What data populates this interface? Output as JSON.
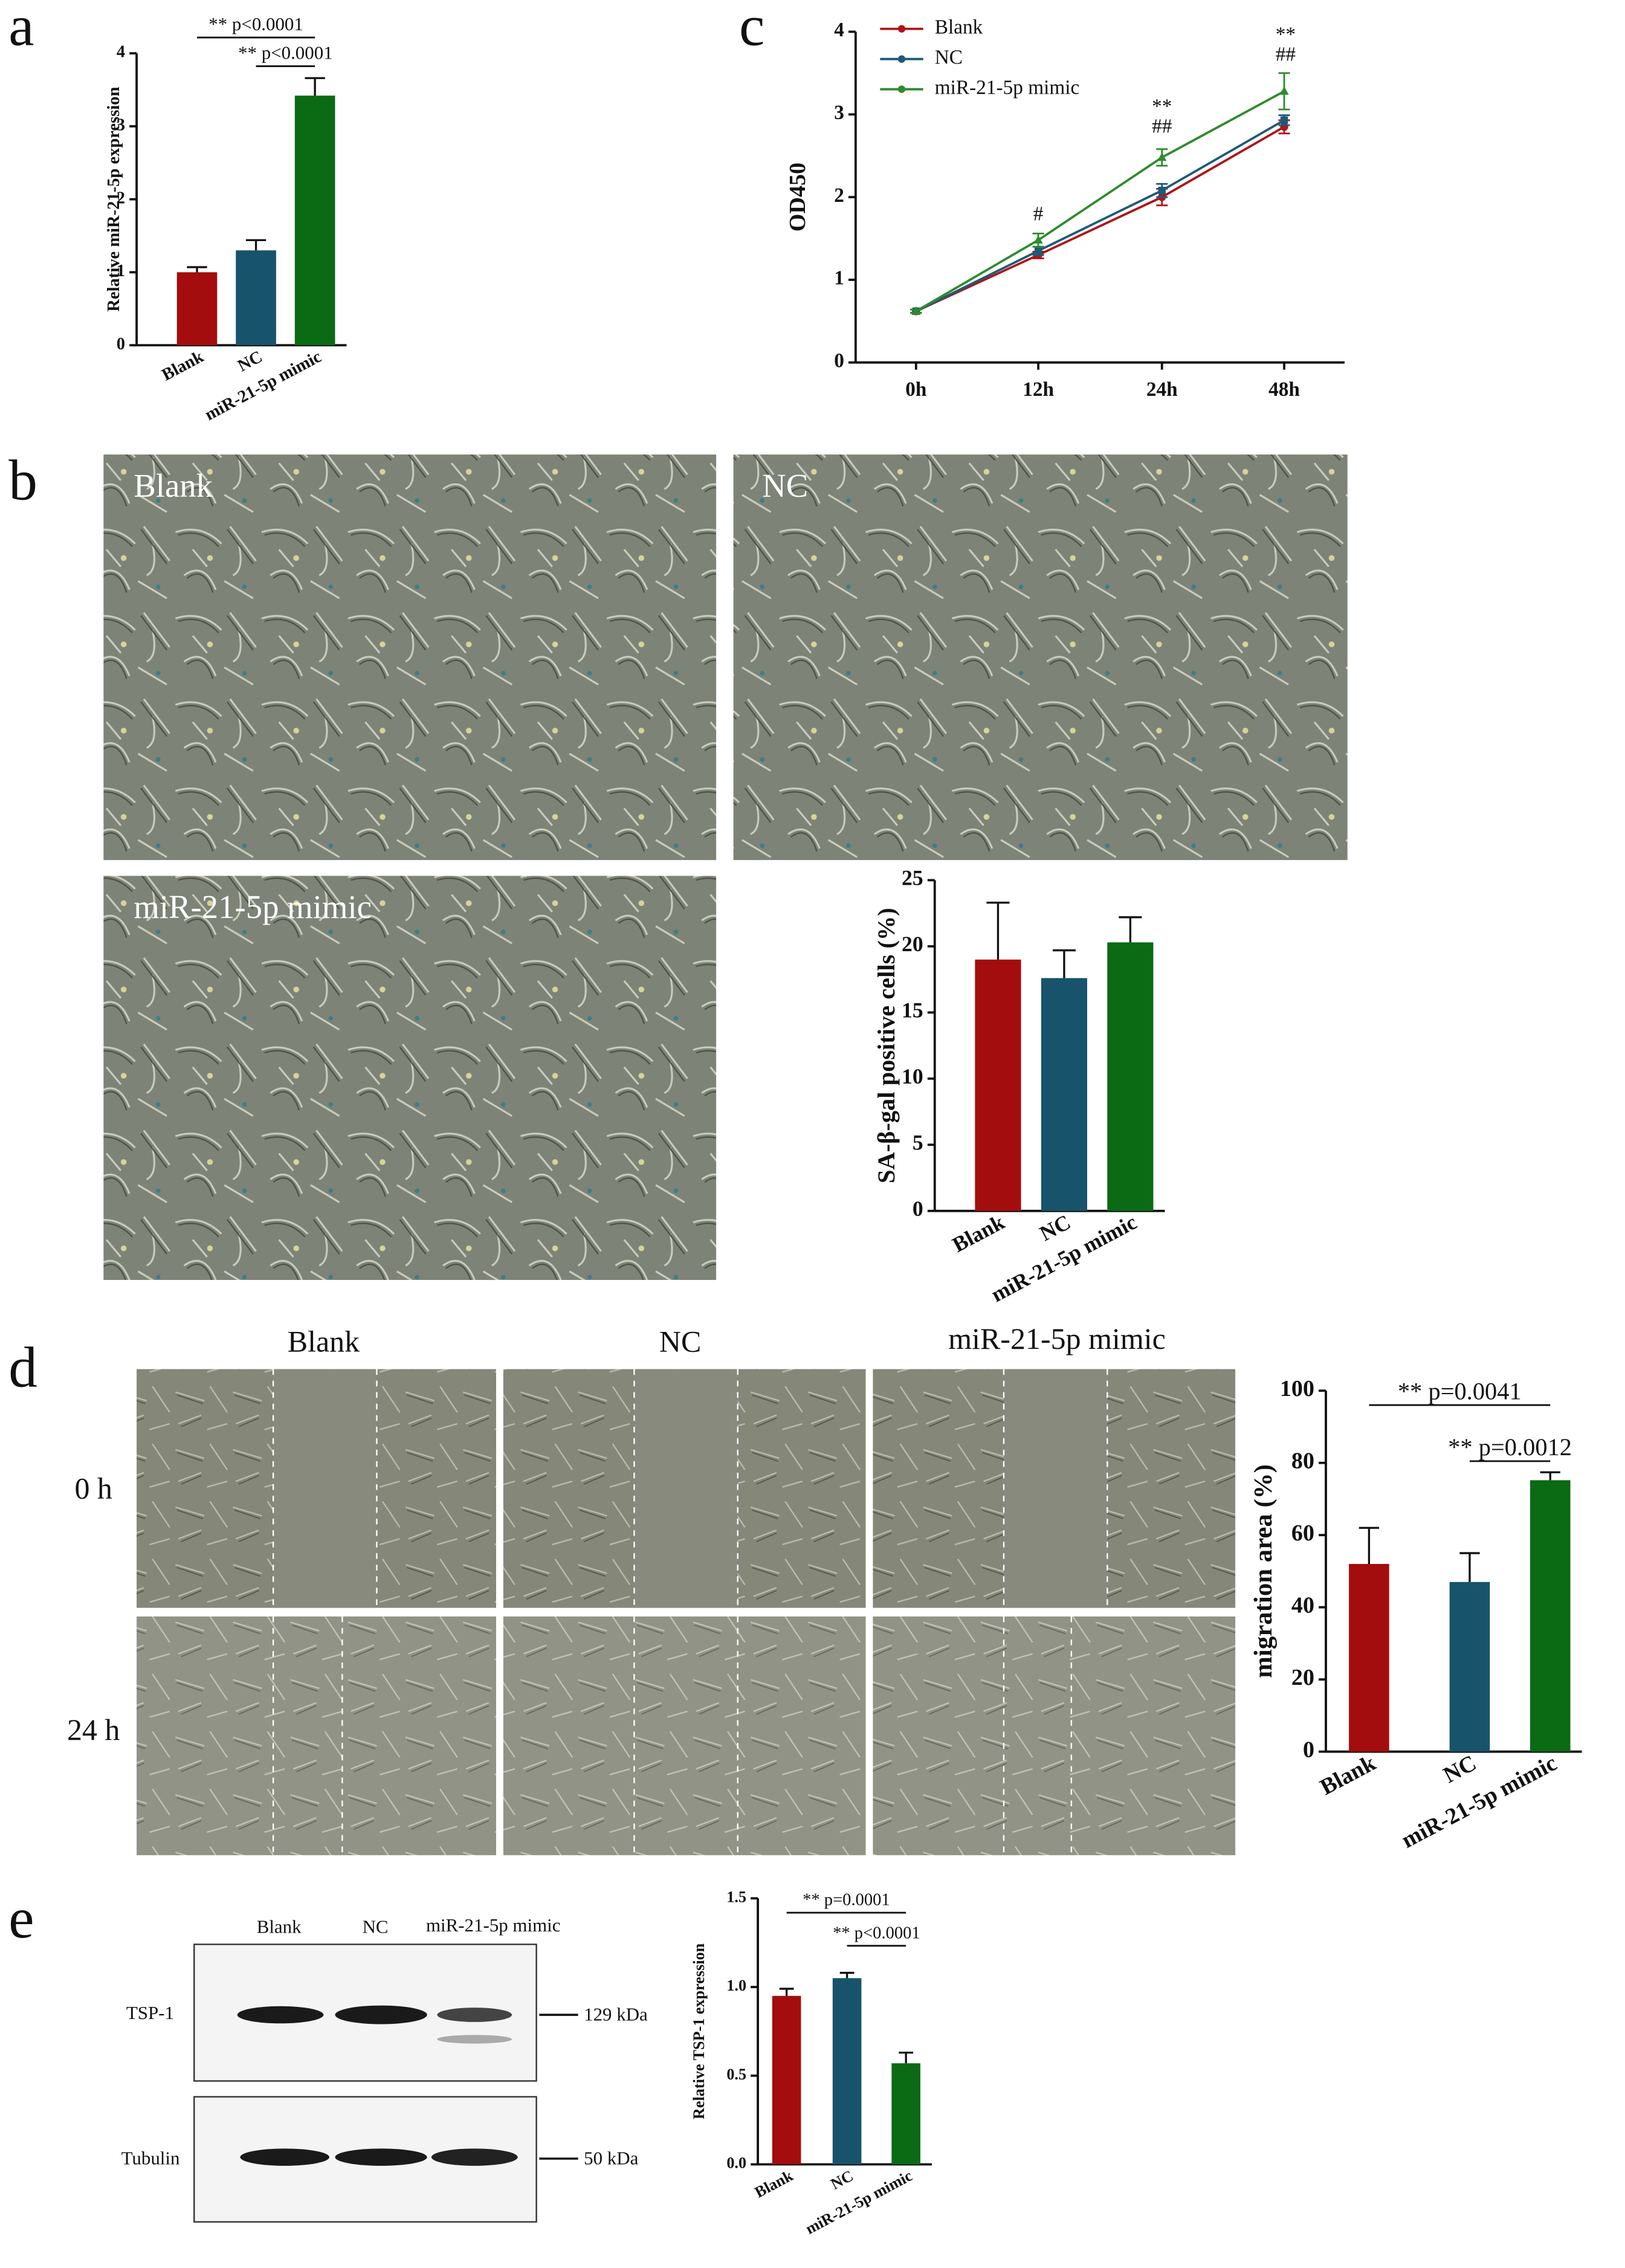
{
  "panel_labels": [
    "a",
    "b",
    "c",
    "d",
    "e"
  ],
  "chart_data": [
    {
      "type": "bar",
      "y_label": "Relative miR-21-5p expression",
      "categories": [
        "Blank",
        "NC",
        "miR-21-5p mimic"
      ],
      "values": [
        1.0,
        1.3,
        3.42
      ],
      "errors": [
        0.07,
        0.14,
        0.24
      ],
      "colors": [
        "#a30d0d",
        "#17536b",
        "#0b6a14"
      ],
      "ylim": [
        0,
        4
      ],
      "yticks": [
        0,
        1,
        2,
        3,
        4
      ],
      "annotations": [
        "** p<0.0001",
        "** p<0.0001"
      ]
    },
    {
      "type": "line",
      "y_label": "OD450",
      "categories": [
        "0h",
        "12h",
        "24h",
        "48h"
      ],
      "ylim": [
        0,
        4
      ],
      "yticks": [
        0,
        1,
        2,
        3,
        4
      ],
      "series": [
        {
          "name": "Blank",
          "color": "#b0141a",
          "values": [
            0.62,
            1.3,
            2.0,
            2.85
          ],
          "errors": [
            0.02,
            0.04,
            0.1,
            0.08
          ]
        },
        {
          "name": "NC",
          "color": "#1d5a78",
          "values": [
            0.62,
            1.35,
            2.08,
            2.93
          ],
          "errors": [
            0.02,
            0.05,
            0.08,
            0.06
          ]
        },
        {
          "name": "miR-21-5p mimic",
          "color": "#2e8b2e",
          "values": [
            0.62,
            1.48,
            2.48,
            3.28
          ],
          "errors": [
            0.02,
            0.08,
            0.1,
            0.22
          ]
        }
      ],
      "annotations": [
        "#",
        "**",
        "##",
        "**",
        "##"
      ]
    },
    {
      "type": "bar",
      "y_label": "SA-β-gal positive cells (%)",
      "categories": [
        "Blank",
        "NC",
        "miR-21-5p mimic"
      ],
      "values": [
        19,
        17.6,
        20.3
      ],
      "errors": [
        4.3,
        2.1,
        1.9
      ],
      "colors": [
        "#a30d0d",
        "#17536b",
        "#0b6a14"
      ],
      "ylim": [
        0,
        25
      ],
      "yticks": [
        0,
        5,
        10,
        15,
        20,
        25
      ],
      "annotations": []
    },
    {
      "type": "bar",
      "y_label": "migration area (%)",
      "categories": [
        "Blank",
        "NC",
        "miR-21-5p mimic"
      ],
      "values": [
        52,
        47,
        75.2
      ],
      "errors": [
        10,
        8,
        2.2
      ],
      "colors": [
        "#a30d0d",
        "#17536b",
        "#0b6a14"
      ],
      "ylim": [
        0,
        100
      ],
      "yticks": [
        0,
        20,
        40,
        60,
        80,
        100
      ],
      "annotations": [
        "** p=0.0041",
        "** p=0.0012"
      ]
    },
    {
      "type": "bar",
      "y_label": "Relative TSP-1 expression",
      "categories": [
        "Blank",
        "NC",
        "miR-21-5p mimic"
      ],
      "values": [
        0.95,
        1.05,
        0.57
      ],
      "errors": [
        0.04,
        0.03,
        0.06
      ],
      "colors": [
        "#a30d0d",
        "#17536b",
        "#0b6a14"
      ],
      "ylim": [
        0,
        1.5
      ],
      "yticks": [
        {
          "value": 0,
          "label": "0.0"
        },
        {
          "value": 0.5,
          "label": "0.5"
        },
        {
          "value": 1,
          "label": "1.0"
        },
        {
          "value": 1.5,
          "label": "1.5"
        }
      ],
      "annotations": [
        "** p=0.0001",
        "** p<0.0001"
      ]
    }
  ],
  "senescence_images": {
    "labels": [
      "Blank",
      "NC",
      "miR-21-5p mimic"
    ]
  },
  "wound_healing": {
    "columns": [
      "Blank",
      "NC",
      "miR-21-5p mimic"
    ],
    "rows": [
      "0 h",
      "24 h"
    ]
  },
  "western_blot": {
    "lanes": [
      "Blank",
      "NC",
      "miR-21-5p mimic"
    ],
    "bands": [
      {
        "name": "TSP-1",
        "size": "129 kDa"
      },
      {
        "name": "Tubulin",
        "size": "50 kDa"
      }
    ]
  }
}
